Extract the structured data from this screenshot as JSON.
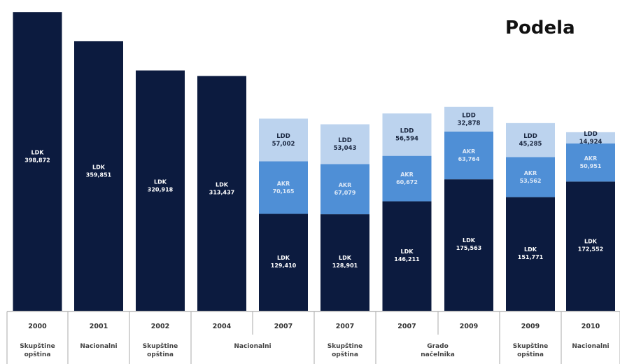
{
  "chart_data": {
    "type": "bar",
    "stacked": true,
    "title": "Podela",
    "colors": {
      "LDK": "#0c1b3f",
      "AKR": "#4f8fd6",
      "LDD": "#bcd3ee",
      "axis": "#aaaaaa"
    },
    "segment_label_names": {
      "LDK": "LDK",
      "AKR": "AKR",
      "LDD": "LDD"
    },
    "ylim": [
      0,
      400000
    ],
    "bars": [
      {
        "year": "2000",
        "LDK": 398872,
        "LDK_label": "398,872"
      },
      {
        "year": "2001",
        "LDK": 359851,
        "LDK_label": "359,851"
      },
      {
        "year": "2002",
        "LDK": 320918,
        "LDK_label": "320,918"
      },
      {
        "year": "2004",
        "LDK": 313437,
        "LDK_label": "313,437"
      },
      {
        "year": "2007",
        "LDK": 129410,
        "LDK_label": "129,410",
        "AKR": 70165,
        "AKR_label": "70,165",
        "LDD": 57002,
        "LDD_label": "57,002"
      },
      {
        "year": "2007",
        "LDK": 128901,
        "LDK_label": "128,901",
        "AKR": 67079,
        "AKR_label": "67,079",
        "LDD": 53043,
        "LDD_label": "53,043"
      },
      {
        "year": "2007",
        "LDK": 146211,
        "LDK_label": "146,211",
        "AKR": 60672,
        "AKR_label": "60,672",
        "LDD": 56594,
        "LDD_label": "56,594"
      },
      {
        "year": "2009",
        "LDK": 175563,
        "LDK_label": "175,563",
        "AKR": 63764,
        "AKR_label": "63,764",
        "LDD": 32878,
        "LDD_label": "32,878"
      },
      {
        "year": "2009",
        "LDK": 151771,
        "LDK_label": "151,771",
        "AKR": 53562,
        "AKR_label": "53,562",
        "LDD": 45285,
        "LDD_label": "45,285"
      },
      {
        "year": "2010",
        "LDK": 172552,
        "LDK_label": "172,552",
        "AKR": 50951,
        "AKR_label": "50,951",
        "LDD": 14924,
        "LDD_label": "14,924"
      }
    ],
    "category_groups": [
      {
        "label_lines": [
          "Skupštine",
          "opština"
        ],
        "bars": [
          0
        ]
      },
      {
        "label_lines": [
          "Nacionalni"
        ],
        "bars": [
          1
        ]
      },
      {
        "label_lines": [
          "Skupštine",
          "opština"
        ],
        "bars": [
          2
        ]
      },
      {
        "label_lines": [
          "Nacionalni"
        ],
        "bars": [
          3,
          4
        ]
      },
      {
        "label_lines": [
          "Skupštine",
          "opština"
        ],
        "bars": [
          5
        ]
      },
      {
        "label_lines": [
          "Grado",
          "načelnika"
        ],
        "bars": [
          6,
          7
        ]
      },
      {
        "label_lines": [
          "Skupštine",
          "opština"
        ],
        "bars": [
          8
        ]
      },
      {
        "label_lines": [
          "Nacionalni"
        ],
        "bars": [
          9
        ]
      }
    ]
  }
}
